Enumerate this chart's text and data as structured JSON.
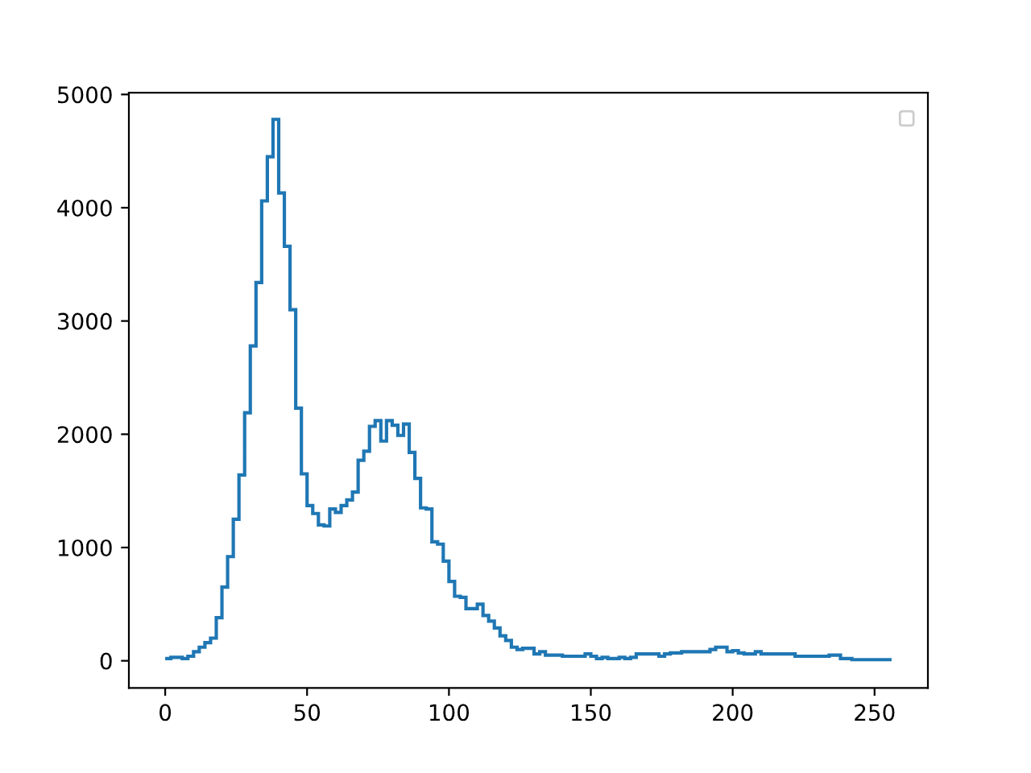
{
  "chart_data": {
    "type": "histogram",
    "bins": [
      0,
      2,
      4,
      6,
      8,
      10,
      12,
      14,
      16,
      18,
      20,
      22,
      24,
      26,
      28,
      30,
      32,
      34,
      36,
      38,
      40,
      42,
      44,
      46,
      48,
      50,
      52,
      54,
      56,
      58,
      60,
      62,
      64,
      66,
      68,
      70,
      72,
      74,
      76,
      78,
      80,
      82,
      84,
      86,
      88,
      90,
      92,
      94,
      96,
      98,
      100,
      102,
      104,
      106,
      108,
      110,
      112,
      114,
      116,
      118,
      120,
      122,
      124,
      126,
      128,
      130,
      132,
      134,
      136,
      138,
      140,
      142,
      144,
      146,
      148,
      150,
      152,
      154,
      156,
      158,
      160,
      162,
      164,
      166,
      168,
      170,
      172,
      174,
      176,
      178,
      180,
      182,
      184,
      186,
      188,
      190,
      192,
      194,
      196,
      198,
      200,
      202,
      204,
      206,
      208,
      210,
      212,
      214,
      216,
      218,
      220,
      222,
      224,
      226,
      228,
      230,
      232,
      234,
      236,
      238,
      240,
      242,
      244,
      246,
      248,
      250,
      252,
      254,
      256
    ],
    "values": [
      20,
      30,
      30,
      20,
      40,
      80,
      120,
      160,
      200,
      380,
      650,
      920,
      1250,
      1640,
      2190,
      2780,
      3340,
      4060,
      4450,
      4780,
      4130,
      3660,
      3100,
      2230,
      1650,
      1370,
      1300,
      1200,
      1190,
      1340,
      1310,
      1370,
      1420,
      1490,
      1770,
      1850,
      2070,
      2120,
      1940,
      2120,
      2080,
      1990,
      2090,
      1840,
      1610,
      1350,
      1340,
      1050,
      1030,
      880,
      700,
      570,
      560,
      460,
      460,
      500,
      400,
      350,
      290,
      220,
      180,
      120,
      100,
      110,
      110,
      60,
      80,
      50,
      50,
      50,
      40,
      40,
      40,
      40,
      60,
      40,
      20,
      30,
      20,
      20,
      30,
      20,
      30,
      60,
      60,
      60,
      60,
      40,
      60,
      70,
      70,
      80,
      80,
      80,
      80,
      80,
      100,
      120,
      120,
      80,
      90,
      70,
      60,
      60,
      80,
      60,
      60,
      60,
      60,
      60,
      60,
      40,
      40,
      40,
      40,
      40,
      40,
      50,
      50,
      20,
      20,
      10,
      10,
      10,
      10,
      10,
      10,
      10
    ],
    "color": "#1f77b4",
    "xlim": [
      -12.8,
      268.8
    ],
    "xticks": [
      0,
      50,
      100,
      150,
      200,
      250
    ],
    "ylim": [
      -240,
      5015
    ],
    "yticks": [
      0,
      1000,
      2000,
      3000,
      4000,
      5000
    ]
  }
}
